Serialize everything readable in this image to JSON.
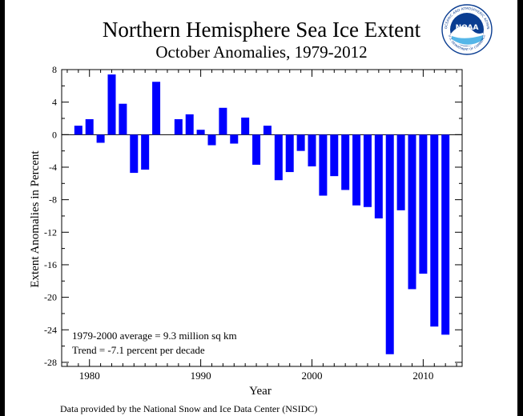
{
  "title": "Northern Hemisphere Sea Ice Extent",
  "subtitle": "October Anomalies, 1979-2012",
  "footer": "Data provided by the National Snow and Ice Data Center (NSIDC)",
  "logo": {
    "text": "NOAA",
    "ring_top": "NATIONAL OCEANIC AND ATMOSPHERIC ADMINISTRATION",
    "ring_bottom": "U.S. DEPARTMENT OF COMMERCE",
    "colors": {
      "ring": "#ffffff",
      "inner": "#0a3d91",
      "accent": "#55b6e8"
    }
  },
  "chart_data": {
    "type": "bar",
    "title": "Northern Hemisphere Sea Ice Extent",
    "subtitle": "October Anomalies, 1979-2012",
    "xlabel": "Year",
    "ylabel": "Extent Anomalies in Percent",
    "x_ticks": [
      1980,
      1990,
      2000,
      2010
    ],
    "y_ticks": [
      8,
      4,
      0,
      -4,
      -8,
      -12,
      -16,
      -20,
      -24,
      -28
    ],
    "xlim": [
      1977.5,
      2013.5
    ],
    "ylim": [
      -28.5,
      8
    ],
    "bar_color": "#0000ff",
    "grid": false,
    "annotations": [
      "1979-2000 average =  9.3 million sq km",
      "Trend =  -7.1 percent per decade"
    ],
    "x": [
      1979,
      1980,
      1981,
      1982,
      1983,
      1984,
      1985,
      1986,
      1987,
      1988,
      1989,
      1990,
      1991,
      1992,
      1993,
      1994,
      1995,
      1996,
      1997,
      1998,
      1999,
      2000,
      2001,
      2002,
      2003,
      2004,
      2005,
      2006,
      2007,
      2008,
      2009,
      2010,
      2011,
      2012
    ],
    "values": [
      1.1,
      1.9,
      -1.0,
      7.4,
      3.8,
      -4.7,
      -4.3,
      6.5,
      0.0,
      1.9,
      2.5,
      0.6,
      -1.3,
      3.3,
      -1.1,
      2.1,
      -3.7,
      1.1,
      -5.6,
      -4.6,
      -2.0,
      -3.9,
      -7.5,
      -5.1,
      -6.8,
      -8.7,
      -8.9,
      -10.3,
      -27.0,
      -9.3,
      -19.0,
      -17.1,
      -23.6,
      -24.6
    ]
  }
}
